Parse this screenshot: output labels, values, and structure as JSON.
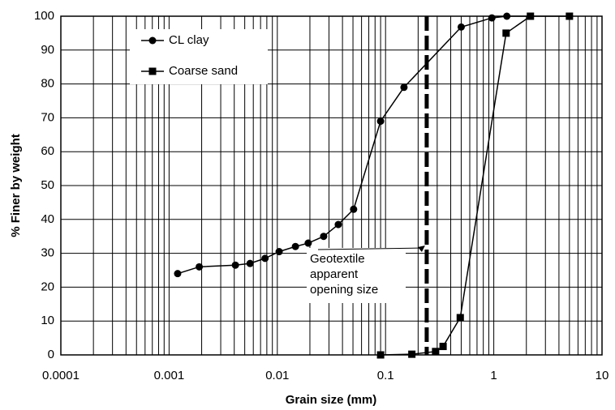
{
  "chart_data": {
    "type": "line",
    "x_label": "Grain size (mm)",
    "y_label": "% Finer by weight",
    "log_x": true,
    "grid": true,
    "xlim": [
      0.0001,
      10
    ],
    "xticks": [
      0.0001,
      0.001,
      0.01,
      0.1,
      1,
      10
    ],
    "ylim": [
      0,
      100
    ],
    "yticks": [
      0,
      10,
      20,
      30,
      40,
      50,
      60,
      70,
      80,
      90,
      100
    ],
    "series": [
      {
        "name": "CL clay",
        "color": "#000000",
        "marker": "circle",
        "x": [
          0.0012,
          0.0019,
          0.0041,
          0.0056,
          0.0077,
          0.0104,
          0.0147,
          0.0193,
          0.0268,
          0.0366,
          0.0507,
          0.09,
          0.148,
          0.5,
          0.96,
          1.32,
          2.18
        ],
        "values": [
          24,
          26,
          26.5,
          27,
          28.5,
          30.5,
          32,
          33,
          35,
          38.5,
          43,
          69,
          79,
          96.8,
          99.5,
          100,
          100
        ]
      },
      {
        "name": "Coarse sand",
        "color": "#000000",
        "marker": "square",
        "x": [
          0.09,
          0.175,
          0.29,
          0.34,
          0.49,
          1.3,
          2.18,
          5.0
        ],
        "values": [
          0,
          0.2,
          1,
          2.5,
          11,
          95,
          100,
          100
        ]
      }
    ],
    "vline": {
      "x": 0.24
    },
    "annotation": [
      "Geotextile",
      "apparent",
      "opening size"
    ]
  }
}
